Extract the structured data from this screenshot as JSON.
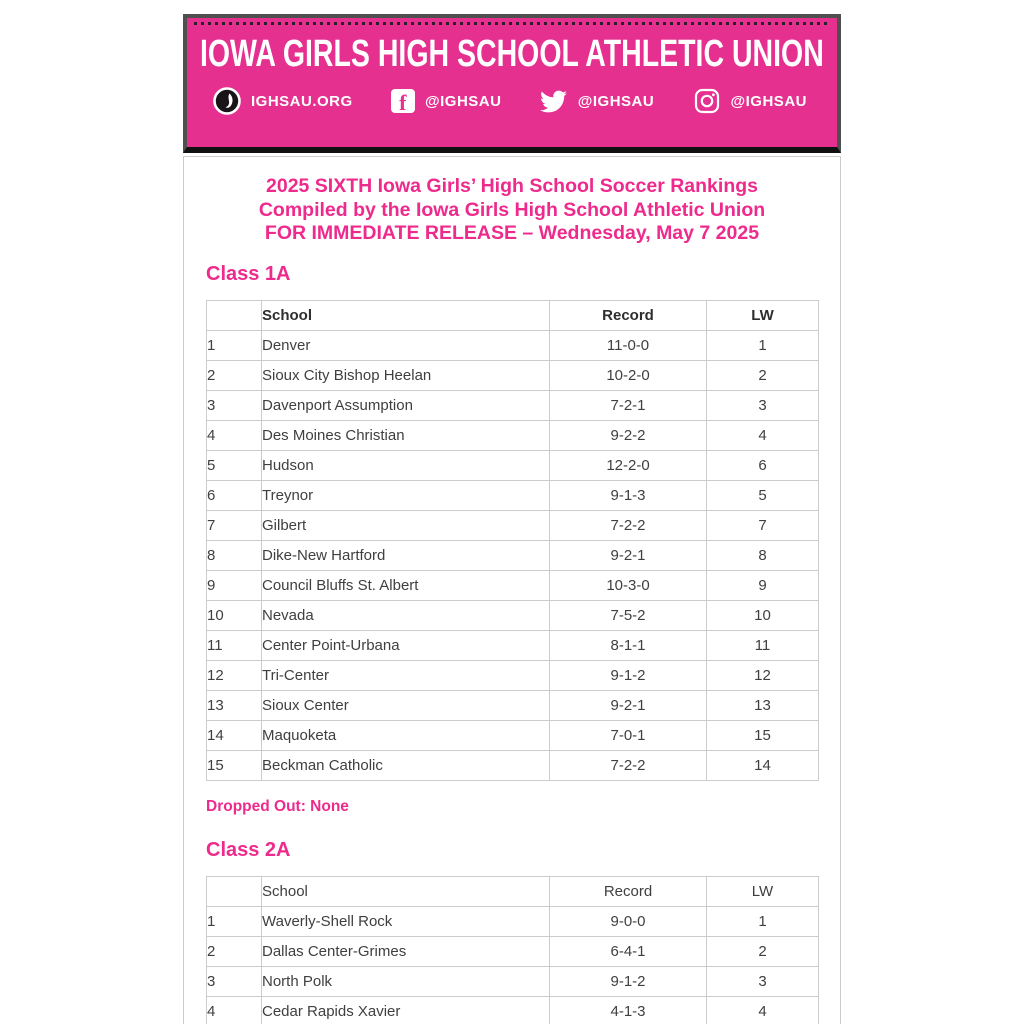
{
  "colors": {
    "banner_pink": "#e5308f",
    "accent_pink": "#ee2a8c",
    "banner_border": "#4f4f4f",
    "table_border": "#cccccc",
    "body_text": "#3f3f3f"
  },
  "banner": {
    "title": "IOWA GIRLS HIGH SCHOOL ATHLETIC UNION",
    "links": [
      {
        "icon": "ighsau-logo-icon",
        "label": "IGHSAU.ORG"
      },
      {
        "icon": "facebook-icon",
        "label": "@IGHSAU",
        "glyph": "f"
      },
      {
        "icon": "twitter-icon",
        "label": "@IGHSAU"
      },
      {
        "icon": "instagram-icon",
        "label": "@IGHSAU"
      }
    ]
  },
  "release": {
    "line1": "2025 SIXTH Iowa Girls’ High School Soccer Rankings",
    "line2": "Compiled by the Iowa Girls High School Athletic Union",
    "line3": "FOR IMMEDIATE RELEASE – Wednesday, May 7 2025"
  },
  "sections": [
    {
      "heading": "Class 1A",
      "columns": [
        "",
        "School",
        "Record",
        "LW"
      ],
      "header_bold": true,
      "rows": [
        [
          "1",
          "Denver",
          "11-0-0",
          "1"
        ],
        [
          "2",
          "Sioux City Bishop Heelan",
          "10-2-0",
          "2"
        ],
        [
          "3",
          "Davenport Assumption",
          "7-2-1",
          "3"
        ],
        [
          "4",
          "Des Moines Christian",
          "9-2-2",
          "4"
        ],
        [
          "5",
          "Hudson",
          "12-2-0",
          "6"
        ],
        [
          "6",
          "Treynor",
          "9-1-3",
          "5"
        ],
        [
          "7",
          "Gilbert",
          "7-2-2",
          "7"
        ],
        [
          "8",
          "Dike-New Hartford",
          "9-2-1",
          "8"
        ],
        [
          "9",
          "Council Bluffs St. Albert",
          "10-3-0",
          "9"
        ],
        [
          "10",
          "Nevada",
          "7-5-2",
          "10"
        ],
        [
          "11",
          "Center Point-Urbana",
          "8-1-1",
          "11"
        ],
        [
          "12",
          "Tri-Center",
          "9-1-2",
          "12"
        ],
        [
          "13",
          "Sioux Center",
          "9-2-1",
          "13"
        ],
        [
          "14",
          "Maquoketa",
          "7-0-1",
          "15"
        ],
        [
          "15",
          "Beckman Catholic",
          "7-2-2",
          "14"
        ]
      ],
      "note": "Dropped Out: None"
    },
    {
      "heading": "Class 2A",
      "columns": [
        "",
        "School",
        "Record",
        "LW"
      ],
      "header_bold": false,
      "rows": [
        [
          "1",
          "Waverly-Shell Rock",
          "9-0-0",
          "1"
        ],
        [
          "2",
          "Dallas Center-Grimes",
          "6-4-1",
          "2"
        ],
        [
          "3",
          "North Polk",
          "9-1-2",
          "3"
        ],
        [
          "4",
          "Cedar Rapids Xavier",
          "4-1-3",
          "4"
        ]
      ],
      "note": ""
    }
  ]
}
